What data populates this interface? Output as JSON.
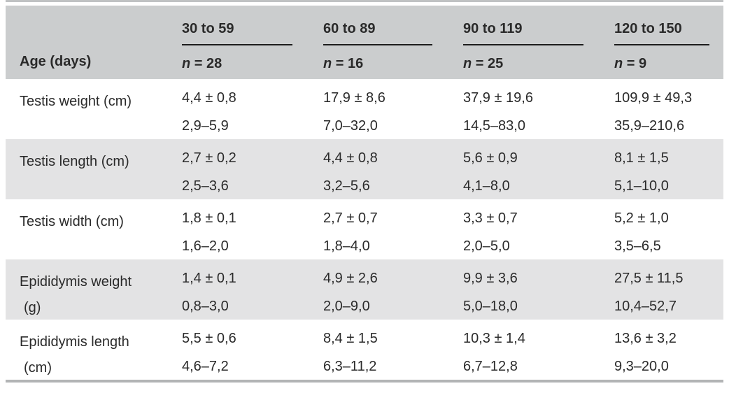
{
  "table": {
    "corner_label": "Age (days)",
    "column_groups": [
      {
        "age_range": "30 to 59",
        "n_symbol": "n",
        "n_value": " = 28"
      },
      {
        "age_range": "60 to 89",
        "n_symbol": "n",
        "n_value": " = 16"
      },
      {
        "age_range": "90 to 119",
        "n_symbol": "n",
        "n_value": " = 25"
      },
      {
        "age_range": "120 to 150",
        "n_symbol": "n",
        "n_value": " = 9"
      }
    ],
    "rows": [
      {
        "label": "Testis weight (cm)",
        "cells": [
          {
            "mean_sd": "4,4 ± 0,8",
            "range": "2,9–5,9"
          },
          {
            "mean_sd": "17,9 ± 8,6",
            "range": "7,0–32,0"
          },
          {
            "mean_sd": "37,9 ± 19,6",
            "range": "14,5–83,0"
          },
          {
            "mean_sd": "109,9 ± 49,3",
            "range": "35,9–210,6"
          }
        ]
      },
      {
        "label": "Testis length (cm)",
        "cells": [
          {
            "mean_sd": "2,7 ± 0,2",
            "range": "2,5–3,6"
          },
          {
            "mean_sd": "4,4 ± 0,8",
            "range": "3,2–5,6"
          },
          {
            "mean_sd": "5,6 ± 0,9",
            "range": "4,1–8,0"
          },
          {
            "mean_sd": "8,1 ± 1,5",
            "range": "5,1–10,0"
          }
        ]
      },
      {
        "label": "Testis width (cm)",
        "cells": [
          {
            "mean_sd": "1,8 ± 0,1",
            "range": "1,6–2,0"
          },
          {
            "mean_sd": "2,7 ± 0,7",
            "range": "1,8–4,0"
          },
          {
            "mean_sd": "3,3 ± 0,7",
            "range": "2,0–5,0"
          },
          {
            "mean_sd": "5,2 ± 1,0",
            "range": "3,5–6,5"
          }
        ]
      },
      {
        "label": "Epididymis weight\n(g)",
        "cells": [
          {
            "mean_sd": "1,4 ± 0,1",
            "range": "0,8–3,0"
          },
          {
            "mean_sd": "4,9 ± 2,6",
            "range": "2,0–9,0"
          },
          {
            "mean_sd": "9,9 ± 3,6",
            "range": "5,0–18,0"
          },
          {
            "mean_sd": "27,5 ± 11,5",
            "range": "10,4–52,7"
          }
        ]
      },
      {
        "label": "Epididymis length\n(cm)",
        "cells": [
          {
            "mean_sd": "5,5 ± 0,6",
            "range": "4,6–7,2"
          },
          {
            "mean_sd": "8,4 ± 1,5",
            "range": "6,3–11,2"
          },
          {
            "mean_sd": "10,3 ± 1,4",
            "range": "6,7–12,8"
          },
          {
            "mean_sd": "13,6 ± 3,2",
            "range": "9,3–20,0"
          }
        ]
      }
    ]
  },
  "colors": {
    "text": "#2a2a2a",
    "header_bg": "#cbcdce",
    "alt_row_bg": "#e3e3e4",
    "rule": "#b2b4b5",
    "top_rule": "#c0c2c3",
    "underline": "#1c1c1c"
  }
}
